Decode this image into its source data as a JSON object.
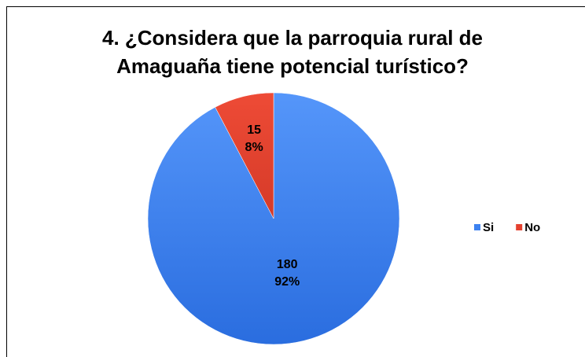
{
  "chart_data": {
    "type": "pie",
    "title": "4. ¿Considera que la parroquia rural de Amaguaña tiene potencial turístico?",
    "categories": [
      "Si",
      "No"
    ],
    "values": [
      180,
      15
    ],
    "percentages": [
      92,
      8
    ],
    "percentage_labels": [
      "92%",
      "8%"
    ],
    "colors": [
      "#3d82f0",
      "#e5412f"
    ],
    "legend": "right"
  }
}
